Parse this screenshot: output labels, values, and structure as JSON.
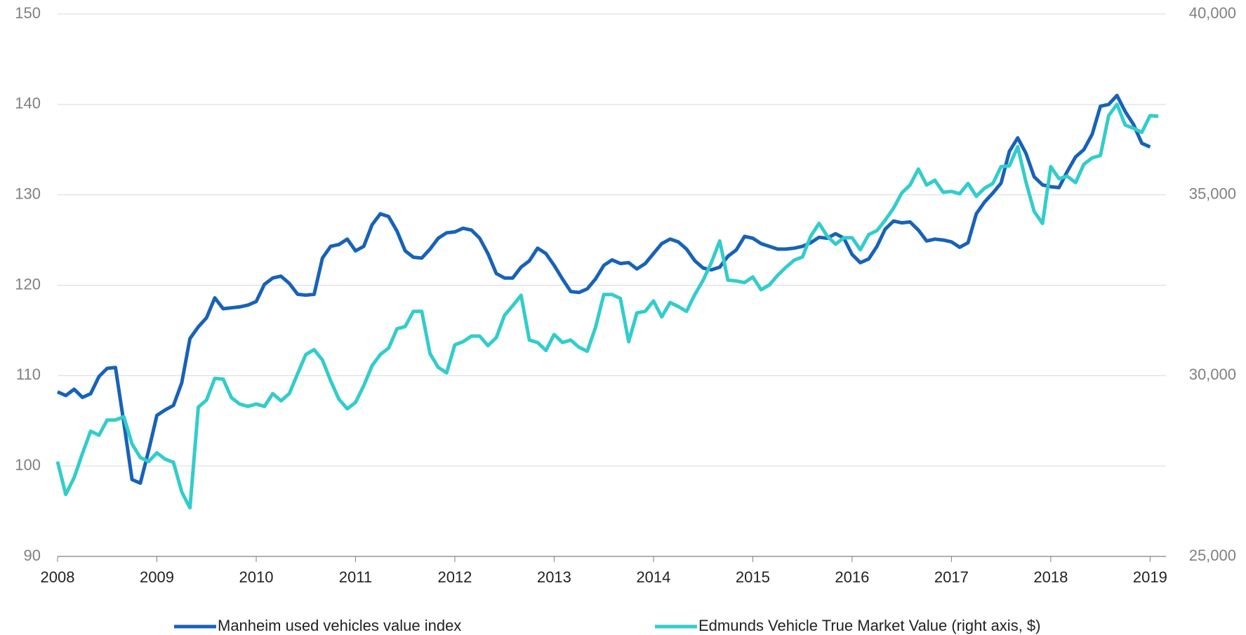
{
  "chart_data": {
    "type": "line",
    "x": [
      2008,
      2008.083,
      2008.167,
      2008.25,
      2008.333,
      2008.417,
      2008.5,
      2008.583,
      2008.667,
      2008.75,
      2008.833,
      2008.917,
      2009,
      2009.083,
      2009.167,
      2009.25,
      2009.333,
      2009.417,
      2009.5,
      2009.583,
      2009.667,
      2009.75,
      2009.833,
      2009.917,
      2010,
      2010.083,
      2010.167,
      2010.25,
      2010.333,
      2010.417,
      2010.5,
      2010.583,
      2010.667,
      2010.75,
      2010.833,
      2010.917,
      2011,
      2011.083,
      2011.167,
      2011.25,
      2011.333,
      2011.417,
      2011.5,
      2011.583,
      2011.667,
      2011.75,
      2011.833,
      2011.917,
      2012,
      2012.083,
      2012.167,
      2012.25,
      2012.333,
      2012.417,
      2012.5,
      2012.583,
      2012.667,
      2012.75,
      2012.833,
      2012.917,
      2013,
      2013.083,
      2013.167,
      2013.25,
      2013.333,
      2013.417,
      2013.5,
      2013.583,
      2013.667,
      2013.75,
      2013.833,
      2013.917,
      2014,
      2014.083,
      2014.167,
      2014.25,
      2014.333,
      2014.417,
      2014.5,
      2014.583,
      2014.667,
      2014.75,
      2014.833,
      2014.917,
      2015,
      2015.083,
      2015.167,
      2015.25,
      2015.333,
      2015.417,
      2015.5,
      2015.583,
      2015.667,
      2015.75,
      2015.833,
      2015.917,
      2016,
      2016.083,
      2016.167,
      2016.25,
      2016.333,
      2016.417,
      2016.5,
      2016.583,
      2016.667,
      2016.75,
      2016.833,
      2016.917,
      2017,
      2017.083,
      2017.167,
      2017.25,
      2017.333,
      2017.417,
      2017.5,
      2017.583,
      2017.667,
      2017.75,
      2017.833,
      2017.917,
      2018,
      2018.083,
      2018.167,
      2018.25,
      2018.333,
      2018.417,
      2018.5,
      2018.583,
      2018.667,
      2018.75,
      2018.833,
      2018.917,
      2019,
      2019.083
    ],
    "series": [
      {
        "name": "Manheim used vehicles value index",
        "color": "#1862b8",
        "values": [
          108.2,
          107.8,
          108.5,
          107.6,
          108,
          109.9,
          110.8,
          110.9,
          104.8,
          98.5,
          98.1,
          101.7,
          105.6,
          106.2,
          106.7,
          109.2,
          114.1,
          115.4,
          116.4,
          118.6,
          117.4,
          117.5,
          117.6,
          117.8,
          118.2,
          120.1,
          120.8,
          121,
          120.2,
          119,
          118.9,
          119,
          123,
          124.3,
          124.5,
          125.1,
          123.8,
          124.3,
          126.7,
          127.9,
          127.6,
          126,
          123.8,
          123.1,
          123,
          124,
          125.2,
          125.8,
          125.9,
          126.3,
          126.1,
          125.2,
          123.5,
          121.3,
          120.8,
          120.8,
          122,
          122.7,
          124.1,
          123.5,
          122.2,
          120.7,
          119.3,
          119.2,
          119.6,
          120.7,
          122.2,
          122.8,
          122.4,
          122.5,
          121.8,
          122.4,
          123.5,
          124.6,
          125.1,
          124.8,
          124,
          122.7,
          121.9,
          121.7,
          122,
          123.2,
          123.9,
          125.4,
          125.2,
          124.6,
          124.3,
          124,
          124,
          124.1,
          124.3,
          124.7,
          125.3,
          125.2,
          125.7,
          125.2,
          123.4,
          122.5,
          122.9,
          124.3,
          126.2,
          127.1,
          126.9,
          127,
          126.1,
          124.9,
          125.1,
          125,
          124.8,
          124.2,
          124.7,
          127.9,
          129.2,
          130.2,
          131.3,
          134.8,
          136.3,
          134.6,
          132,
          131.1,
          130.9,
          130.8,
          132.6,
          134.2,
          135,
          136.7,
          139.8,
          140,
          141,
          139.2,
          137.8,
          135.7,
          135.3,
          null
        ]
      },
      {
        "name": "Edmunds Vehicle True Market Value (right axis, $)",
        "color": "#33cccc",
        "axis": "y2",
        "values": [
          27623,
          26716,
          27180,
          27845,
          28464,
          28353,
          28773,
          28773,
          28862,
          28110,
          27735,
          27624,
          27867,
          27690,
          27602,
          26784,
          26342,
          29127,
          29326,
          29923,
          29901,
          29393,
          29215,
          29149,
          29215,
          29149,
          29502,
          29304,
          29502,
          30055,
          30585,
          30718,
          30431,
          29856,
          29348,
          29083,
          29259,
          29723,
          30276,
          30585,
          30762,
          31293,
          31359,
          31779,
          31779,
          30607,
          30232,
          30077,
          30851,
          30939,
          31094,
          31094,
          30829,
          31050,
          31668,
          31934,
          32221,
          30983,
          30917,
          30696,
          31138,
          30917,
          30983,
          30784,
          30674,
          31337,
          32243,
          32243,
          32133,
          30939,
          31735,
          31779,
          32066,
          31624,
          32022,
          31911,
          31779,
          32243,
          32641,
          33127,
          33724,
          32641,
          32619,
          32574,
          32729,
          32375,
          32508,
          32773,
          32995,
          33193,
          33282,
          33856,
          34210,
          33856,
          33635,
          33812,
          33812,
          33481,
          33900,
          34011,
          34298,
          34630,
          35050,
          35271,
          35713,
          35271,
          35403,
          35072,
          35094,
          35028,
          35315,
          34961,
          35182,
          35315,
          35779,
          35801,
          36331,
          35359,
          34541,
          34210,
          35779,
          35447,
          35514,
          35337,
          35845,
          36022,
          36088,
          37193,
          37503,
          36928,
          36840,
          36729,
          37193,
          37171
        ]
      }
    ],
    "xlim": [
      2008,
      2019.16
    ],
    "xticks": [
      2008,
      2009,
      2010,
      2011,
      2012,
      2013,
      2014,
      2015,
      2016,
      2017,
      2018,
      2019
    ],
    "ylim": [
      90,
      150
    ],
    "yticks": [
      90,
      100,
      110,
      120,
      130,
      140,
      150
    ],
    "y2lim": [
      25000,
      40000
    ],
    "y2ticks": [
      {
        "value": 25000,
        "label": "25,000"
      },
      {
        "value": 30000,
        "label": "30,000"
      },
      {
        "value": 35000,
        "label": "35,000"
      },
      {
        "value": 40000,
        "label": "40,000"
      }
    ],
    "grid": true,
    "legend": "bottom"
  }
}
